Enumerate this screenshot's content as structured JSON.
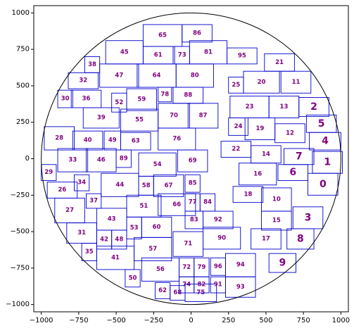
{
  "chart_data": {
    "type": "scatter",
    "title": "",
    "xlabel": "",
    "ylabel": "",
    "xlim": [
      -1050,
      1050
    ],
    "ylim": [
      -1050,
      1050
    ],
    "grid": false,
    "xticks": [
      -1000,
      -750,
      -500,
      -250,
      0,
      250,
      500,
      750,
      1000
    ],
    "yticks": [
      -1000,
      -750,
      -500,
      -250,
      0,
      250,
      500,
      750,
      1000
    ],
    "xtick_labels": [
      "−1000",
      "−750",
      "−500",
      "−250",
      "0",
      "250",
      "500",
      "750",
      "1000"
    ],
    "ytick_labels": [
      "−1000",
      "−750",
      "−500",
      "−250",
      "0",
      "250",
      "500",
      "750",
      "1000"
    ],
    "circle": {
      "cx": 0,
      "cy": 0,
      "r": 1000
    },
    "colors": {
      "box_edge": "#0000cc",
      "label": "#800080",
      "circle": "#000000"
    },
    "boxes": [
      {
        "label": "0",
        "x0": 780,
        "x1": 980,
        "y0": -250,
        "y1": -100
      },
      {
        "label": "1",
        "x0": 810,
        "x1": 1010,
        "y0": -100,
        "y1": 50
      },
      {
        "label": "2",
        "x0": 720,
        "x1": 920,
        "y0": 290,
        "y1": 420
      },
      {
        "label": "3",
        "x0": 680,
        "x1": 880,
        "y0": -480,
        "y1": -330
      },
      {
        "label": "4",
        "x0": 790,
        "x1": 1000,
        "y0": 60,
        "y1": 180
      },
      {
        "label": "5",
        "x0": 770,
        "x1": 970,
        "y0": 180,
        "y1": 300
      },
      {
        "label": "6",
        "x0": 580,
        "x1": 780,
        "y0": -150,
        "y1": -40
      },
      {
        "label": "7",
        "x0": 620,
        "x1": 820,
        "y0": -40,
        "y1": 70
      },
      {
        "label": "8",
        "x0": 640,
        "x1": 820,
        "y0": -620,
        "y1": -480
      },
      {
        "label": "9",
        "x0": 520,
        "x1": 700,
        "y0": -780,
        "y1": -650
      },
      {
        "label": "10",
        "x0": 470,
        "x1": 670,
        "y0": -360,
        "y1": -200
      },
      {
        "label": "11",
        "x0": 600,
        "x1": 800,
        "y0": 450,
        "y1": 600
      },
      {
        "label": "12",
        "x0": 560,
        "x1": 760,
        "y0": 110,
        "y1": 240
      },
      {
        "label": "13",
        "x0": 520,
        "x1": 720,
        "y0": 280,
        "y1": 430
      },
      {
        "label": "14",
        "x0": 400,
        "x1": 600,
        "y0": -30,
        "y1": 90
      },
      {
        "label": "15",
        "x0": 470,
        "x1": 670,
        "y0": -490,
        "y1": -360
      },
      {
        "label": "16",
        "x0": 320,
        "x1": 570,
        "y0": -180,
        "y1": -30
      },
      {
        "label": "17",
        "x0": 400,
        "x1": 600,
        "y0": -620,
        "y1": -480
      },
      {
        "label": "18",
        "x0": 280,
        "x1": 480,
        "y0": -300,
        "y1": -190
      },
      {
        "label": "19",
        "x0": 360,
        "x1": 560,
        "y0": 130,
        "y1": 280
      },
      {
        "label": "20",
        "x0": 350,
        "x1": 590,
        "y0": 450,
        "y1": 600
      },
      {
        "label": "21",
        "x0": 490,
        "x1": 690,
        "y0": 600,
        "y1": 720
      },
      {
        "label": "22",
        "x0": 200,
        "x1": 400,
        "y0": 10,
        "y1": 120
      },
      {
        "label": "23",
        "x0": 260,
        "x1": 520,
        "y0": 280,
        "y1": 430
      },
      {
        "label": "24",
        "x0": 250,
        "x1": 380,
        "y0": 160,
        "y1": 280
      },
      {
        "label": "25",
        "x0": 250,
        "x1": 350,
        "y0": 450,
        "y1": 560
      },
      {
        "label": "26",
        "x0": -960,
        "x1": -760,
        "y0": -270,
        "y1": -160
      },
      {
        "label": "27",
        "x0": -910,
        "x1": -710,
        "y0": -440,
        "y1": -270
      },
      {
        "label": "28",
        "x0": -980,
        "x1": -780,
        "y0": 60,
        "y1": 220
      },
      {
        "label": "29",
        "x0": -1000,
        "x1": -900,
        "y0": -150,
        "y1": -40
      },
      {
        "label": "30",
        "x0": -890,
        "x1": -790,
        "y0": 350,
        "y1": 470
      },
      {
        "label": "31",
        "x0": -830,
        "x1": -630,
        "y0": -580,
        "y1": -440
      },
      {
        "label": "32",
        "x0": -820,
        "x1": -620,
        "y0": 480,
        "y1": 590
      },
      {
        "label": "33",
        "x0": -890,
        "x1": -690,
        "y0": -90,
        "y1": 70
      },
      {
        "label": "34",
        "x0": -780,
        "x1": -680,
        "y0": -220,
        "y1": -110
      },
      {
        "label": "35",
        "x0": -730,
        "x1": -630,
        "y0": -700,
        "y1": -580
      },
      {
        "label": "36",
        "x0": -800,
        "x1": -600,
        "y0": 350,
        "y1": 470
      },
      {
        "label": "37",
        "x0": -700,
        "x1": -600,
        "y0": -340,
        "y1": -240
      },
      {
        "label": "38",
        "x0": -710,
        "x1": -610,
        "y0": 590,
        "y1": 700
      },
      {
        "label": "39",
        "x0": -720,
        "x1": -480,
        "y0": 210,
        "y1": 350
      },
      {
        "label": "40",
        "x0": -790,
        "x1": -590,
        "y0": 60,
        "y1": 190
      },
      {
        "label": "41",
        "x0": -630,
        "x1": -380,
        "y0": -760,
        "y1": -600
      },
      {
        "label": "42",
        "x0": -630,
        "x1": -530,
        "y0": -620,
        "y1": -490
      },
      {
        "label": "43",
        "x0": -630,
        "x1": -430,
        "y0": -490,
        "y1": -340
      },
      {
        "label": "44",
        "x0": -600,
        "x1": -350,
        "y0": -260,
        "y1": -100
      },
      {
        "label": "45",
        "x0": -570,
        "x1": -320,
        "y0": 650,
        "y1": 810
      },
      {
        "label": "46",
        "x0": -700,
        "x1": -500,
        "y0": -90,
        "y1": 70
      },
      {
        "label": "47",
        "x0": -610,
        "x1": -350,
        "y0": 490,
        "y1": 650
      },
      {
        "label": "48",
        "x0": -530,
        "x1": -430,
        "y0": -620,
        "y1": -490
      },
      {
        "label": "49",
        "x0": -580,
        "x1": -470,
        "y0": 60,
        "y1": 190
      },
      {
        "label": "50",
        "x0": -440,
        "x1": -340,
        "y0": -880,
        "y1": -760
      },
      {
        "label": "51",
        "x0": -430,
        "x1": -200,
        "y0": -400,
        "y1": -250
      },
      {
        "label": "52",
        "x0": -530,
        "x1": -430,
        "y0": 320,
        "y1": 450
      },
      {
        "label": "53",
        "x0": -430,
        "x1": -330,
        "y0": -550,
        "y1": -400
      },
      {
        "label": "54",
        "x0": -350,
        "x1": -100,
        "y0": -120,
        "y1": 40
      },
      {
        "label": "55",
        "x0": -470,
        "x1": -220,
        "y0": 190,
        "y1": 340
      },
      {
        "label": "56",
        "x0": -330,
        "x1": -80,
        "y0": -840,
        "y1": -680
      },
      {
        "label": "57",
        "x0": -380,
        "x1": -130,
        "y0": -700,
        "y1": -540
      },
      {
        "label": "58",
        "x0": -350,
        "x1": -250,
        "y0": -250,
        "y1": -120
      },
      {
        "label": "59",
        "x0": -430,
        "x1": -230,
        "y0": 330,
        "y1": 480
      },
      {
        "label": "60",
        "x0": -330,
        "x1": -130,
        "y0": -540,
        "y1": -400
      },
      {
        "label": "61",
        "x0": -320,
        "x1": -120,
        "y0": 650,
        "y1": 770
      },
      {
        "label": "62",
        "x0": -240,
        "x1": -140,
        "y0": -960,
        "y1": -850
      },
      {
        "label": "63",
        "x0": -470,
        "x1": -270,
        "y0": 60,
        "y1": 180
      },
      {
        "label": "64",
        "x0": -360,
        "x1": -100,
        "y0": 490,
        "y1": 650
      },
      {
        "label": "65",
        "x0": -320,
        "x1": -60,
        "y0": 770,
        "y1": 920
      },
      {
        "label": "66",
        "x0": -220,
        "x1": 30,
        "y0": -390,
        "y1": -240
      },
      {
        "label": "67",
        "x0": -250,
        "x1": -50,
        "y0": -260,
        "y1": -110
      },
      {
        "label": "68",
        "x0": -140,
        "x1": -40,
        "y0": -970,
        "y1": -870
      },
      {
        "label": "69",
        "x0": -90,
        "x1": 110,
        "y0": -90,
        "y1": 60
      },
      {
        "label": "70",
        "x0": -220,
        "x1": -10,
        "y0": 210,
        "y1": 380
      },
      {
        "label": "71",
        "x0": -120,
        "x1": 80,
        "y0": -670,
        "y1": -500
      },
      {
        "label": "72",
        "x0": -80,
        "x1": 20,
        "y0": -810,
        "y1": -680
      },
      {
        "label": "73",
        "x0": -110,
        "x1": -10,
        "y0": 650,
        "y1": 770
      },
      {
        "label": "74",
        "x0": -80,
        "x1": 20,
        "y0": -920,
        "y1": -810
      },
      {
        "label": "75",
        "x0": -40,
        "x1": 170,
        "y0": -980,
        "y1": -860
      },
      {
        "label": "76",
        "x0": -220,
        "x1": 30,
        "y0": 60,
        "y1": 210
      },
      {
        "label": "77",
        "x0": -40,
        "x1": 60,
        "y0": -360,
        "y1": -240
      },
      {
        "label": "78",
        "x0": -220,
        "x1": -130,
        "y0": 390,
        "y1": 490
      },
      {
        "label": "79",
        "x0": 20,
        "x1": 120,
        "y0": -810,
        "y1": -680
      },
      {
        "label": "80",
        "x0": -100,
        "x1": 150,
        "y0": 490,
        "y1": 650
      },
      {
        "label": "81",
        "x0": -10,
        "x1": 240,
        "y0": 650,
        "y1": 810
      },
      {
        "label": "82",
        "x0": 20,
        "x1": 120,
        "y0": -920,
        "y1": -810
      },
      {
        "label": "83",
        "x0": -40,
        "x1": 80,
        "y0": -480,
        "y1": -360
      },
      {
        "label": "84",
        "x0": 60,
        "x1": 160,
        "y0": -360,
        "y1": -240
      },
      {
        "label": "85",
        "x0": -40,
        "x1": 60,
        "y0": -230,
        "y1": -110
      },
      {
        "label": "86",
        "x0": -60,
        "x1": 140,
        "y0": 800,
        "y1": 920
      },
      {
        "label": "87",
        "x0": -20,
        "x1": 180,
        "y0": 210,
        "y1": 380
      },
      {
        "label": "88",
        "x0": -120,
        "x1": 80,
        "y0": 380,
        "y1": 490
      },
      {
        "label": "89",
        "x0": -500,
        "x1": -400,
        "y0": -60,
        "y1": 60
      },
      {
        "label": "90",
        "x0": 80,
        "x1": 330,
        "y0": -620,
        "y1": -470
      },
      {
        "label": "91",
        "x0": 130,
        "x1": 230,
        "y0": -920,
        "y1": -810
      },
      {
        "label": "92",
        "x0": 80,
        "x1": 280,
        "y0": -480,
        "y1": -360
      },
      {
        "label": "93",
        "x0": 230,
        "x1": 430,
        "y0": -950,
        "y1": -810
      },
      {
        "label": "94",
        "x0": 230,
        "x1": 430,
        "y0": -810,
        "y1": -650
      },
      {
        "label": "95",
        "x0": 240,
        "x1": 440,
        "y0": 650,
        "y1": 760
      },
      {
        "label": "96",
        "x0": 130,
        "x1": 230,
        "y0": -800,
        "y1": -680
      }
    ]
  }
}
